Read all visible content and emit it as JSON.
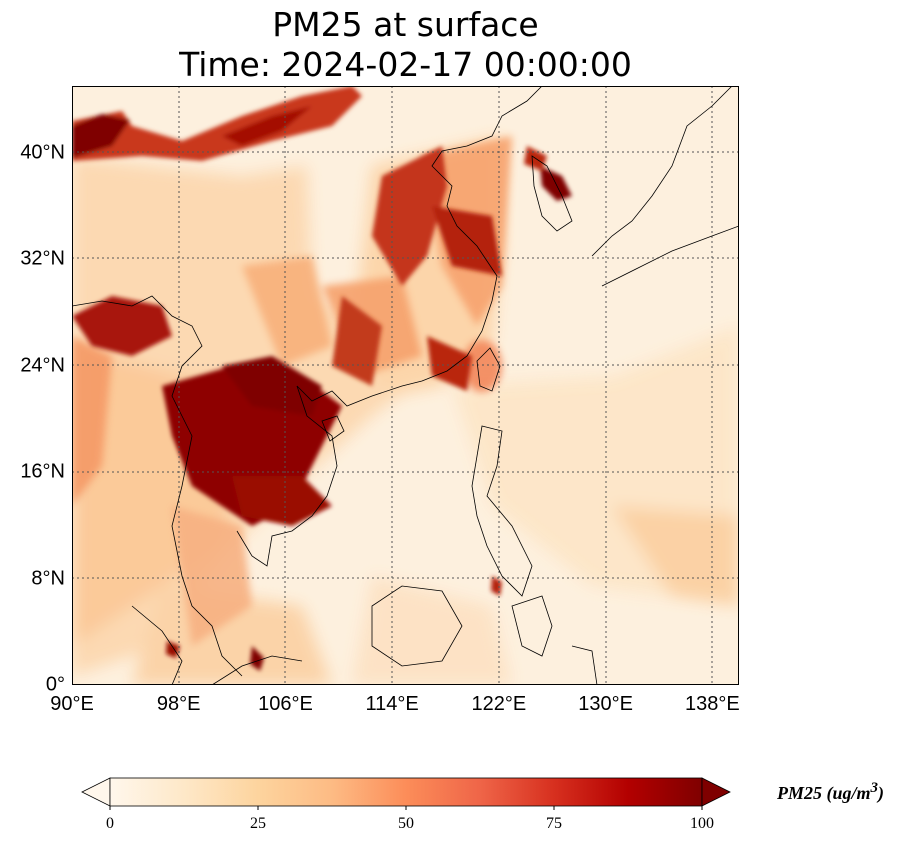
{
  "title": {
    "line1": "PM25 at surface",
    "line2": "Time: 2024-02-17 00:00:00"
  },
  "map": {
    "type": "geographic-heatmap",
    "variable": "PM25",
    "lon_range": [
      90,
      140
    ],
    "lat_range": [
      0,
      45
    ],
    "grid": true,
    "y_ticks": [
      {
        "value": 40,
        "label": "40°N"
      },
      {
        "value": 32,
        "label": "32°N"
      },
      {
        "value": 24,
        "label": "24°N"
      },
      {
        "value": 16,
        "label": "16°N"
      },
      {
        "value": 8,
        "label": "8°N"
      },
      {
        "value": 0,
        "label": "0°"
      }
    ],
    "x_ticks": [
      {
        "value": 90,
        "label": "90°E"
      },
      {
        "value": 98,
        "label": "98°E"
      },
      {
        "value": 106,
        "label": "106°E"
      },
      {
        "value": 114,
        "label": "114°E"
      },
      {
        "value": 122,
        "label": "122°E"
      },
      {
        "value": 130,
        "label": "130°E"
      },
      {
        "value": 138,
        "label": "138°E"
      }
    ]
  },
  "colorbar": {
    "label_main": "PM25 (ug/m",
    "label_sup": "3",
    "label_close": ")",
    "min": 0,
    "max": 100,
    "extend": "both",
    "ticks": [
      "0",
      "25",
      "50",
      "75",
      "100"
    ],
    "colormap": "OrRd",
    "colors": [
      "#fff7ec",
      "#fee8c8",
      "#fdd49e",
      "#fdbb84",
      "#fc8d59",
      "#ef6548",
      "#d7301f",
      "#b30000",
      "#7f0000"
    ]
  }
}
